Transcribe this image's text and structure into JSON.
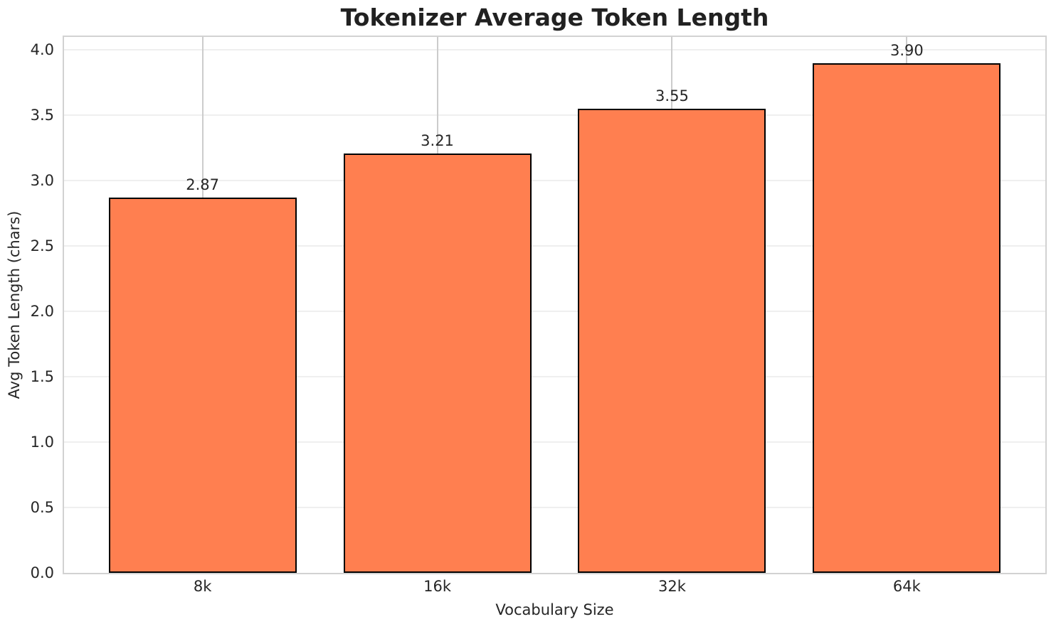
{
  "chart_data": {
    "type": "bar",
    "title": "Tokenizer Average Token Length",
    "xlabel": "Vocabulary Size",
    "ylabel": "Avg Token Length (chars)",
    "categories": [
      "8k",
      "16k",
      "32k",
      "64k"
    ],
    "values": [
      2.87,
      3.21,
      3.55,
      3.9
    ],
    "value_labels": [
      "2.87",
      "3.21",
      "3.55",
      "3.90"
    ],
    "yticks": [
      0,
      0.5,
      1,
      1.5,
      2,
      2.5,
      3,
      3.5,
      4
    ],
    "ytick_labels": [
      "0.0",
      "0.5",
      "1.0",
      "1.5",
      "2.0",
      "2.5",
      "3.0",
      "3.5",
      "4.0"
    ],
    "ylim": [
      0,
      4.1
    ],
    "bar_width_fraction": 0.8,
    "grid": true,
    "legend": false,
    "colors": {
      "bar_fill": "#FF7F50",
      "bar_edge": "#000000",
      "grid_horizontal": "#efefef",
      "grid_vertical": "#cccccc",
      "spine": "#d2d2d2",
      "tick_text": "#262626",
      "title_text": "#212121",
      "background": "#ffffff"
    }
  }
}
